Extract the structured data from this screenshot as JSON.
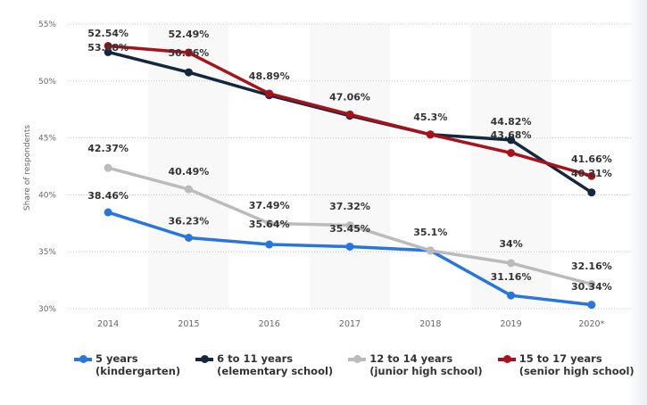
{
  "chart_data": {
    "type": "line",
    "title": "",
    "xlabel": "",
    "ylabel": "Share of respondents",
    "categories": [
      "2014",
      "2015",
      "2016",
      "2017",
      "2018",
      "2019",
      "2020*"
    ],
    "ylim": [
      30,
      55
    ],
    "yticks": [
      30,
      35,
      40,
      45,
      50,
      55
    ],
    "ytick_labels": [
      "30%",
      "35%",
      "40%",
      "45%",
      "50%",
      "55%"
    ],
    "grid": true,
    "legend_position": "bottom-left",
    "series": [
      {
        "name": "5 years",
        "name_line2": "(kindergarten)",
        "color": "#2876dd",
        "values": [
          38.46,
          36.23,
          35.64,
          35.45,
          35.1,
          31.16,
          30.34
        ],
        "labels": [
          "38.46%",
          "36.23%",
          "35.64%",
          "35.45%",
          "",
          "31.16%",
          "30.34%"
        ]
      },
      {
        "name": "6 to 11 years",
        "name_line2": "(elementary school)",
        "color": "#13273d",
        "values": [
          52.54,
          50.76,
          48.75,
          46.95,
          45.3,
          44.82,
          40.21
        ],
        "labels": [
          "52.54%",
          "50.76%",
          "",
          "",
          "",
          "44.82%",
          "40.21%"
        ]
      },
      {
        "name": "12 to 14 years",
        "name_line2": "(junior high school)",
        "color": "#bbbbbb",
        "values": [
          42.37,
          40.49,
          37.49,
          37.32,
          35.1,
          34,
          32.16
        ],
        "labels": [
          "42.37%",
          "40.49%",
          "37.49%",
          "37.32%",
          "35.1%",
          "34%",
          "32.16%"
        ]
      },
      {
        "name": "15 to 17 years",
        "name_line2": "(senior high school)",
        "color": "#a8101a",
        "values": [
          53.08,
          52.49,
          48.89,
          47.06,
          45.3,
          43.68,
          41.66
        ],
        "labels": [
          "53.08%",
          "52.49%",
          "48.89%",
          "47.06%",
          "45.3%",
          "43.68%",
          "41.66%"
        ]
      }
    ]
  },
  "colors": {
    "band": "#f8f8f8",
    "grid": "#c8c8c8",
    "axis_text": "#666666",
    "label_text": "#333333"
  }
}
